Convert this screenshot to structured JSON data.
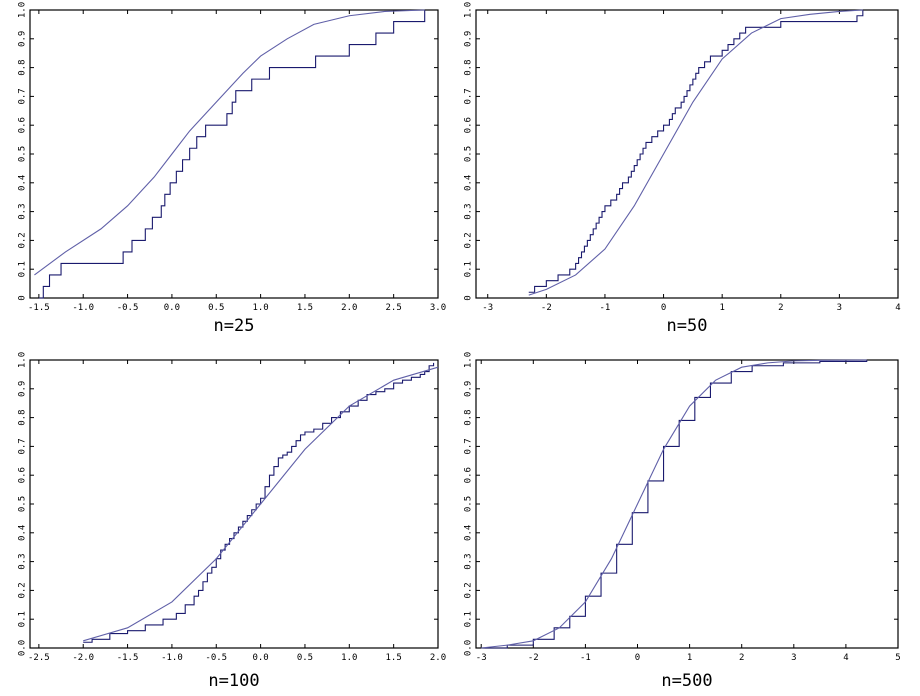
{
  "chart_data": [
    {
      "type": "line",
      "label": "n=25",
      "xlim": [
        -1.6,
        3.0
      ],
      "ylim": [
        0,
        1
      ],
      "xticks": [
        -1.5,
        -1.0,
        -0.5,
        0.0,
        0.5,
        1.0,
        1.5,
        2.0,
        2.5,
        3.0
      ],
      "xtick_labels": [
        "-1.5",
        "-1.0",
        "-0.5",
        "0.0",
        "0.5",
        "1.0",
        "1.5",
        "2.0",
        "2.5",
        "3.0"
      ],
      "yticks": [
        0,
        0.1,
        0.2,
        0.3,
        0.4,
        0.5,
        0.6,
        0.7,
        0.8,
        0.9,
        1.0
      ],
      "ytick_labels": [
        "0",
        "0.1",
        "0.2",
        "0.3",
        "0.4",
        "0.5",
        "0.6",
        "0.7",
        "0.8",
        "0.9",
        "1.0"
      ],
      "series": [
        {
          "kind": "ecdf",
          "x": [
            -1.5,
            -1.45,
            -1.38,
            -1.25,
            -0.55,
            -0.45,
            -0.3,
            -0.22,
            -0.12,
            -0.08,
            -0.02,
            0.05,
            0.12,
            0.2,
            0.28,
            0.38,
            0.62,
            0.68,
            0.72,
            0.9,
            1.1,
            1.62,
            2.0,
            2.3,
            2.5,
            2.85
          ],
          "y": [
            0,
            0.04,
            0.08,
            0.12,
            0.16,
            0.2,
            0.24,
            0.28,
            0.32,
            0.36,
            0.4,
            0.44,
            0.48,
            0.52,
            0.56,
            0.6,
            0.64,
            0.68,
            0.72,
            0.76,
            0.8,
            0.84,
            0.88,
            0.92,
            0.96,
            1.0
          ]
        },
        {
          "kind": "cdf",
          "x": [
            -1.55,
            -1.2,
            -0.8,
            -0.5,
            -0.2,
            0.0,
            0.2,
            0.5,
            0.8,
            1.0,
            1.3,
            1.6,
            2.0,
            2.4,
            2.85
          ],
          "y": [
            0.08,
            0.16,
            0.24,
            0.32,
            0.42,
            0.5,
            0.58,
            0.68,
            0.78,
            0.84,
            0.9,
            0.95,
            0.98,
            0.995,
            1.0
          ]
        }
      ]
    },
    {
      "type": "line",
      "label": "n=50",
      "xlim": [
        -3.2,
        4.0
      ],
      "ylim": [
        0,
        1
      ],
      "xticks": [
        -3,
        -2,
        -1,
        0,
        1,
        2,
        3,
        4
      ],
      "xtick_labels": [
        "-3",
        "-2",
        "-1",
        "0",
        "1",
        "2",
        "3",
        "4"
      ],
      "yticks": [
        0,
        0.1,
        0.2,
        0.3,
        0.4,
        0.5,
        0.6,
        0.7,
        0.8,
        0.9,
        1.0
      ],
      "ytick_labels": [
        "0",
        "0.1",
        "0.2",
        "0.3",
        "0.4",
        "0.5",
        "0.6",
        "0.7",
        "0.8",
        "0.9",
        "1.0"
      ],
      "series": [
        {
          "kind": "ecdf",
          "x": [
            -2.3,
            -2.2,
            -2.0,
            -1.8,
            -1.6,
            -1.5,
            -1.45,
            -1.4,
            -1.35,
            -1.3,
            -1.25,
            -1.2,
            -1.15,
            -1.1,
            -1.05,
            -1.0,
            -0.9,
            -0.8,
            -0.75,
            -0.7,
            -0.6,
            -0.55,
            -0.5,
            -0.45,
            -0.4,
            -0.35,
            -0.3,
            -0.2,
            -0.1,
            0.0,
            0.1,
            0.15,
            0.2,
            0.3,
            0.35,
            0.4,
            0.45,
            0.5,
            0.55,
            0.6,
            0.7,
            0.8,
            1.0,
            1.1,
            1.2,
            1.3,
            1.4,
            2.0,
            3.3,
            3.4
          ],
          "y": [
            0.02,
            0.04,
            0.06,
            0.08,
            0.1,
            0.12,
            0.14,
            0.16,
            0.18,
            0.2,
            0.22,
            0.24,
            0.26,
            0.28,
            0.3,
            0.32,
            0.34,
            0.36,
            0.38,
            0.4,
            0.42,
            0.44,
            0.46,
            0.48,
            0.5,
            0.52,
            0.54,
            0.56,
            0.58,
            0.6,
            0.62,
            0.64,
            0.66,
            0.68,
            0.7,
            0.72,
            0.74,
            0.76,
            0.78,
            0.8,
            0.82,
            0.84,
            0.86,
            0.88,
            0.9,
            0.92,
            0.94,
            0.96,
            0.98,
            1.0
          ]
        },
        {
          "kind": "cdf",
          "x": [
            -2.3,
            -2.0,
            -1.5,
            -1.0,
            -0.5,
            0.0,
            0.5,
            1.0,
            1.5,
            2.0,
            2.5,
            3.0,
            3.4
          ],
          "y": [
            0.01,
            0.03,
            0.08,
            0.17,
            0.32,
            0.5,
            0.68,
            0.83,
            0.92,
            0.97,
            0.985,
            0.995,
            1.0
          ]
        }
      ]
    },
    {
      "type": "line",
      "label": "n=100",
      "xlim": [
        -2.6,
        2.0
      ],
      "ylim": [
        0,
        1
      ],
      "xticks": [
        -2.5,
        -2.0,
        -1.5,
        -1.0,
        -0.5,
        0.0,
        0.5,
        1.0,
        1.5,
        2.0
      ],
      "xtick_labels": [
        "-2.5",
        "-2.0",
        "-1.5",
        "-1.0",
        "-0.5",
        "0.0",
        "0.5",
        "1.0",
        "1.5",
        "2.0"
      ],
      "yticks": [
        0,
        0.1,
        0.2,
        0.3,
        0.4,
        0.5,
        0.6,
        0.7,
        0.8,
        0.9,
        1.0
      ],
      "ytick_labels": [
        "0.0",
        "0.1",
        "0.2",
        "0.3",
        "0.4",
        "0.5",
        "0.6",
        "0.7",
        "0.8",
        "0.9",
        "1.0"
      ],
      "series": [
        {
          "kind": "ecdf",
          "x": [
            -2.0,
            -1.9,
            -1.7,
            -1.5,
            -1.3,
            -1.1,
            -0.95,
            -0.85,
            -0.75,
            -0.7,
            -0.65,
            -0.6,
            -0.55,
            -0.5,
            -0.45,
            -0.4,
            -0.35,
            -0.3,
            -0.25,
            -0.2,
            -0.15,
            -0.1,
            -0.05,
            0.0,
            0.05,
            0.1,
            0.15,
            0.2,
            0.25,
            0.3,
            0.35,
            0.4,
            0.45,
            0.5,
            0.6,
            0.7,
            0.8,
            0.9,
            1.0,
            1.1,
            1.2,
            1.3,
            1.4,
            1.5,
            1.6,
            1.7,
            1.8,
            1.85,
            1.9,
            1.95
          ],
          "y": [
            0.02,
            0.03,
            0.05,
            0.06,
            0.08,
            0.1,
            0.12,
            0.15,
            0.18,
            0.2,
            0.23,
            0.26,
            0.28,
            0.31,
            0.34,
            0.36,
            0.38,
            0.4,
            0.42,
            0.44,
            0.46,
            0.48,
            0.5,
            0.52,
            0.56,
            0.6,
            0.63,
            0.66,
            0.67,
            0.68,
            0.7,
            0.72,
            0.74,
            0.75,
            0.76,
            0.78,
            0.8,
            0.82,
            0.84,
            0.86,
            0.88,
            0.89,
            0.9,
            0.92,
            0.93,
            0.94,
            0.95,
            0.96,
            0.98,
            0.99
          ]
        },
        {
          "kind": "cdf",
          "x": [
            -2.0,
            -1.5,
            -1.0,
            -0.5,
            0.0,
            0.5,
            1.0,
            1.5,
            2.0
          ],
          "y": [
            0.025,
            0.07,
            0.16,
            0.31,
            0.5,
            0.69,
            0.84,
            0.93,
            0.975
          ]
        }
      ]
    },
    {
      "type": "line",
      "label": "n=500",
      "xlim": [
        -3.1,
        5.0
      ],
      "ylim": [
        0,
        1
      ],
      "xticks": [
        -3,
        -2,
        -1,
        0,
        1,
        2,
        3,
        4,
        5
      ],
      "xtick_labels": [
        "-3",
        "-2",
        "-1",
        "0",
        "1",
        "2",
        "3",
        "4",
        "5"
      ],
      "yticks": [
        0,
        0.1,
        0.2,
        0.3,
        0.4,
        0.5,
        0.6,
        0.7,
        0.8,
        0.9,
        1.0
      ],
      "ytick_labels": [
        "0.0",
        "0.1",
        "0.2",
        "0.3",
        "0.4",
        "0.5",
        "0.6",
        "0.7",
        "0.8",
        "0.9",
        "1.0"
      ],
      "series": [
        {
          "kind": "ecdf",
          "x": [
            -3.0,
            -2.5,
            -2.0,
            -1.6,
            -1.3,
            -1.0,
            -0.7,
            -0.4,
            -0.1,
            0.2,
            0.5,
            0.8,
            1.1,
            1.4,
            1.8,
            2.2,
            2.8,
            3.5,
            4.4
          ],
          "y": [
            0.0,
            0.01,
            0.03,
            0.07,
            0.11,
            0.18,
            0.26,
            0.36,
            0.47,
            0.58,
            0.7,
            0.79,
            0.87,
            0.92,
            0.96,
            0.98,
            0.99,
            0.995,
            1.0
          ]
        },
        {
          "kind": "cdf",
          "x": [
            -3.0,
            -2.5,
            -2.0,
            -1.5,
            -1.0,
            -0.5,
            0.0,
            0.5,
            1.0,
            1.5,
            2.0,
            2.5,
            3.0,
            3.5,
            4.4
          ],
          "y": [
            0.0,
            0.01,
            0.025,
            0.07,
            0.16,
            0.31,
            0.5,
            0.69,
            0.84,
            0.93,
            0.975,
            0.99,
            0.997,
            0.999,
            1.0
          ]
        }
      ]
    }
  ],
  "colors": {
    "ecdf": "#1a1a6e",
    "cdf": "#6060a8"
  }
}
